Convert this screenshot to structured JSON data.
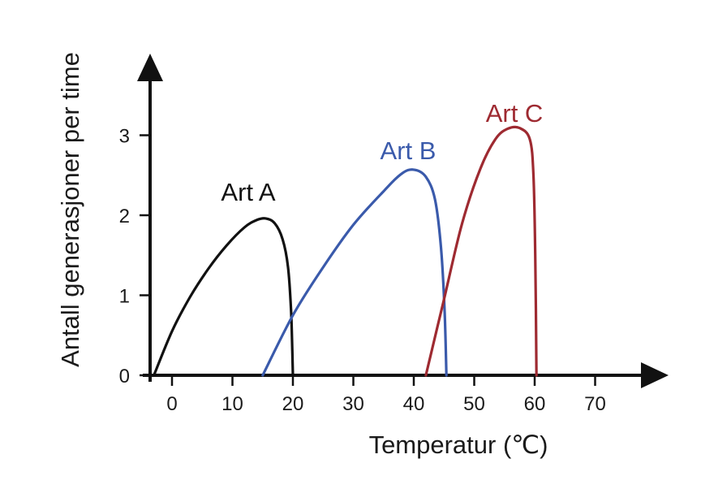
{
  "chart_data": {
    "type": "line",
    "xlabel": "Temperatur (℃)",
    "ylabel": "Antall generasjoner per time",
    "xlim": [
      -4,
      80
    ],
    "ylim": [
      0,
      4
    ],
    "x_ticks": [
      0,
      10,
      20,
      30,
      40,
      50,
      60,
      70
    ],
    "y_ticks": [
      0,
      1,
      2,
      3
    ],
    "grid": false,
    "legend": "none",
    "series": [
      {
        "name": "Art A",
        "color": "#111111",
        "points": [
          [
            -3,
            0
          ],
          [
            0,
            0.55
          ],
          [
            3,
            0.98
          ],
          [
            6,
            1.33
          ],
          [
            9,
            1.62
          ],
          [
            12,
            1.85
          ],
          [
            14,
            1.94
          ],
          [
            15.5,
            1.96
          ],
          [
            17,
            1.9
          ],
          [
            18.3,
            1.7
          ],
          [
            19.2,
            1.35
          ],
          [
            19.7,
            0.8
          ],
          [
            19.9,
            0.3
          ],
          [
            20,
            0
          ]
        ]
      },
      {
        "name": "Art B",
        "color": "#3a5aab",
        "points": [
          [
            15,
            0
          ],
          [
            20,
            0.75
          ],
          [
            25,
            1.35
          ],
          [
            30,
            1.88
          ],
          [
            35,
            2.3
          ],
          [
            38,
            2.52
          ],
          [
            40,
            2.57
          ],
          [
            42,
            2.48
          ],
          [
            43.5,
            2.2
          ],
          [
            44.5,
            1.6
          ],
          [
            45.1,
            0.8
          ],
          [
            45.4,
            0
          ]
        ]
      },
      {
        "name": "Art C",
        "color": "#9e2a31",
        "points": [
          [
            42,
            0
          ],
          [
            45,
            0.95
          ],
          [
            48,
            1.9
          ],
          [
            51,
            2.58
          ],
          [
            53.5,
            2.95
          ],
          [
            55.5,
            3.08
          ],
          [
            57.5,
            3.09
          ],
          [
            59.2,
            2.95
          ],
          [
            59.8,
            2.5
          ],
          [
            60.1,
            1.5
          ],
          [
            60.3,
            0
          ]
        ]
      }
    ]
  }
}
